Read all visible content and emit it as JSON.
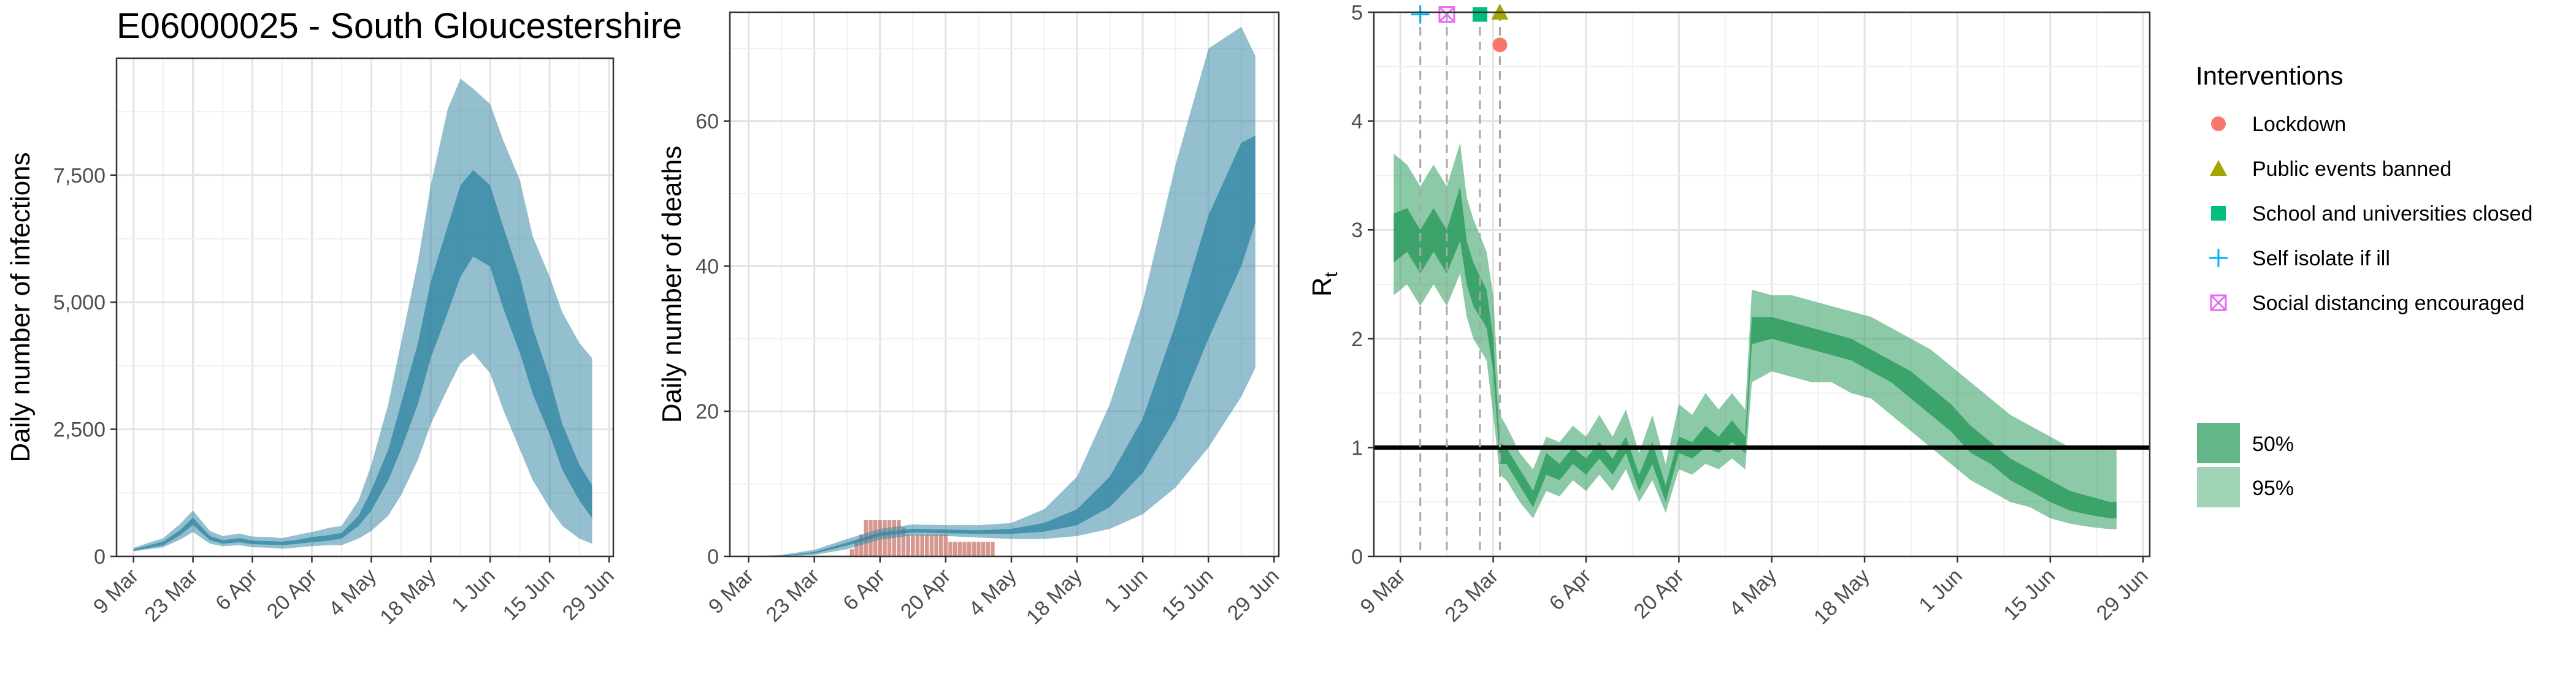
{
  "title": "E06000025 - South Gloucestershire",
  "colors": {
    "infections_band": "#3a8aa6",
    "rt_band": "#2e9d5f",
    "deaths_bar": "#c8756b",
    "lockdown": "#f8766d",
    "public_events_banned": "#a3a500",
    "school_closed": "#00bf7d",
    "self_isolate": "#00b0f6",
    "social_distancing": "#e76bf3"
  },
  "chart_data": [
    {
      "id": "infections",
      "type": "area",
      "title": "E06000025 - South Gloucestershire",
      "xlabel": "",
      "ylabel": "Daily number of infections",
      "x_ticks": [
        "9 Mar",
        "23 Mar",
        "6 Apr",
        "20 Apr",
        "4 May",
        "18 May",
        "1 Jun",
        "15 Jun",
        "29 Jun"
      ],
      "xlim": [
        "2020-03-05",
        "2020-06-30"
      ],
      "ylim": [
        0,
        9800
      ],
      "y_ticks": [
        0,
        2500,
        5000,
        7500
      ],
      "y_tick_labels": [
        "0",
        "2,500",
        "5,000",
        "7,500"
      ],
      "grid": true,
      "series": [
        {
          "x": [
            "2020-03-09",
            "2020-03-16",
            "2020-03-20",
            "2020-03-23",
            "2020-03-27",
            "2020-03-30",
            "2020-04-03",
            "2020-04-06",
            "2020-04-10",
            "2020-04-13",
            "2020-04-17",
            "2020-04-20",
            "2020-04-24",
            "2020-04-27",
            "2020-05-01",
            "2020-05-04",
            "2020-05-08",
            "2020-05-11",
            "2020-05-15",
            "2020-05-18",
            "2020-05-22",
            "2020-05-25",
            "2020-05-28",
            "2020-06-01",
            "2020-06-04",
            "2020-06-08",
            "2020-06-11",
            "2020-06-15",
            "2020-06-18",
            "2020-06-22",
            "2020-06-25"
          ],
          "lower95": [
            100,
            180,
            330,
            480,
            250,
            200,
            220,
            180,
            170,
            150,
            180,
            200,
            220,
            220,
            350,
            500,
            800,
            1200,
            1900,
            2600,
            3300,
            3800,
            4000,
            3600,
            2900,
            2100,
            1500,
            950,
            600,
            350,
            250
          ],
          "lower50": [
            110,
            220,
            420,
            620,
            320,
            250,
            280,
            240,
            230,
            220,
            250,
            280,
            310,
            350,
            600,
            900,
            1500,
            2100,
            3000,
            3900,
            4800,
            5500,
            5900,
            5700,
            4900,
            4000,
            3200,
            2400,
            1700,
            1100,
            750
          ],
          "upper50": [
            140,
            290,
            520,
            760,
            400,
            320,
            360,
            310,
            300,
            290,
            330,
            380,
            420,
            460,
            800,
            1300,
            2100,
            3000,
            4200,
            5400,
            6500,
            7300,
            7600,
            7300,
            6500,
            5500,
            4500,
            3500,
            2600,
            1800,
            1400
          ],
          "upper95": [
            170,
            360,
            640,
            900,
            500,
            400,
            450,
            390,
            380,
            360,
            430,
            480,
            560,
            600,
            1100,
            1800,
            3000,
            4200,
            5800,
            7300,
            8800,
            9400,
            9200,
            8900,
            8200,
            7400,
            6300,
            5500,
            4800,
            4200,
            3900
          ]
        }
      ]
    },
    {
      "id": "deaths",
      "type": "area",
      "xlabel": "",
      "ylabel": "Daily number of deaths",
      "x_ticks": [
        "9 Mar",
        "23 Mar",
        "6 Apr",
        "20 Apr",
        "4 May",
        "18 May",
        "1 Jun",
        "15 Jun",
        "29 Jun"
      ],
      "xlim": [
        "2020-03-05",
        "2020-06-30"
      ],
      "ylim": [
        0,
        75
      ],
      "y_ticks": [
        0,
        20,
        40,
        60
      ],
      "y_tick_labels": [
        "0",
        "20",
        "40",
        "60"
      ],
      "grid": true,
      "series": [
        {
          "x": [
            "2020-03-09",
            "2020-03-16",
            "2020-03-23",
            "2020-03-30",
            "2020-04-06",
            "2020-04-13",
            "2020-04-20",
            "2020-04-27",
            "2020-05-04",
            "2020-05-11",
            "2020-05-18",
            "2020-05-25",
            "2020-06-01",
            "2020-06-08",
            "2020-06-15",
            "2020-06-22",
            "2020-06-25"
          ],
          "lower95": [
            0,
            0,
            0.2,
            1.0,
            2.3,
            2.9,
            2.8,
            2.6,
            2.4,
            2.4,
            2.8,
            3.8,
            5.8,
            9.5,
            15,
            22,
            26
          ],
          "lower50": [
            0,
            0.05,
            0.4,
            1.5,
            2.8,
            3.3,
            3.2,
            3.1,
            3.1,
            3.4,
            4.3,
            6.8,
            11.5,
            19,
            30,
            40,
            46
          ],
          "upper50": [
            0,
            0.1,
            0.6,
            1.9,
            3.3,
            3.8,
            3.7,
            3.6,
            3.8,
            4.6,
            6.5,
            11,
            19,
            32,
            47,
            57,
            58
          ],
          "upper95": [
            0,
            0.2,
            0.9,
            2.4,
            3.8,
            4.4,
            4.3,
            4.3,
            4.6,
            6.5,
            11,
            21,
            35,
            54,
            70,
            73,
            69
          ]
        }
      ],
      "reported_deaths": {
        "x": [
          "2020-03-31",
          "2020-04-01",
          "2020-04-02",
          "2020-04-03",
          "2020-04-04",
          "2020-04-05",
          "2020-04-06",
          "2020-04-07",
          "2020-04-08",
          "2020-04-09",
          "2020-04-10",
          "2020-04-11",
          "2020-04-12",
          "2020-04-13",
          "2020-04-14",
          "2020-04-15",
          "2020-04-16",
          "2020-04-17",
          "2020-04-18",
          "2020-04-19",
          "2020-04-20",
          "2020-04-21",
          "2020-04-22",
          "2020-04-23",
          "2020-04-24",
          "2020-04-25",
          "2020-04-26",
          "2020-04-27",
          "2020-04-28",
          "2020-04-29",
          "2020-04-30"
        ],
        "values": [
          1,
          2,
          3,
          5,
          5,
          5,
          5,
          5,
          5,
          5,
          5,
          4,
          3,
          3,
          3,
          3,
          3,
          3,
          3,
          3,
          3,
          2,
          2,
          2,
          2,
          2,
          2,
          2,
          2,
          2,
          2
        ]
      }
    },
    {
      "id": "rt",
      "type": "area",
      "xlabel": "",
      "ylabel": "R",
      "ylabel_subscript": "t",
      "x_ticks": [
        "9 Mar",
        "23 Mar",
        "6 Apr",
        "20 Apr",
        "4 May",
        "18 May",
        "1 Jun",
        "15 Jun",
        "29 Jun"
      ],
      "xlim": [
        "2020-03-05",
        "2020-06-30"
      ],
      "ylim": [
        0,
        5
      ],
      "y_ticks": [
        0,
        1,
        2,
        3,
        4,
        5
      ],
      "y_tick_labels": [
        "0",
        "1",
        "2",
        "3",
        "4",
        "5"
      ],
      "grid": true,
      "reference_line": 1,
      "series": [
        {
          "x": [
            "2020-03-08",
            "2020-03-10",
            "2020-03-12",
            "2020-03-14",
            "2020-03-16",
            "2020-03-18",
            "2020-03-19",
            "2020-03-20",
            "2020-03-22",
            "2020-03-23",
            "2020-03-24",
            "2020-03-25",
            "2020-03-27",
            "2020-03-29",
            "2020-03-31",
            "2020-04-02",
            "2020-04-04",
            "2020-04-06",
            "2020-04-08",
            "2020-04-10",
            "2020-04-12",
            "2020-04-14",
            "2020-04-16",
            "2020-04-18",
            "2020-04-20",
            "2020-04-22",
            "2020-04-24",
            "2020-04-26",
            "2020-04-28",
            "2020-04-30",
            "2020-05-01",
            "2020-05-04",
            "2020-05-07",
            "2020-05-10",
            "2020-05-13",
            "2020-05-16",
            "2020-05-19",
            "2020-05-22",
            "2020-05-25",
            "2020-05-28",
            "2020-05-31",
            "2020-06-03",
            "2020-06-06",
            "2020-06-09",
            "2020-06-12",
            "2020-06-15",
            "2020-06-18",
            "2020-06-21",
            "2020-06-24",
            "2020-06-25"
          ],
          "lower95": [
            2.4,
            2.5,
            2.3,
            2.5,
            2.3,
            2.6,
            2.2,
            2.0,
            1.8,
            1.3,
            0.75,
            0.7,
            0.5,
            0.35,
            0.6,
            0.55,
            0.7,
            0.6,
            0.75,
            0.6,
            0.8,
            0.5,
            0.7,
            0.4,
            0.8,
            0.75,
            0.85,
            0.8,
            0.9,
            0.8,
            1.6,
            1.7,
            1.65,
            1.6,
            1.6,
            1.5,
            1.45,
            1.3,
            1.15,
            1.0,
            0.85,
            0.7,
            0.6,
            0.5,
            0.45,
            0.35,
            0.3,
            0.27,
            0.25,
            0.25
          ],
          "lower50": [
            2.7,
            2.8,
            2.6,
            2.8,
            2.6,
            2.9,
            2.5,
            2.3,
            2.1,
            1.7,
            0.85,
            0.85,
            0.65,
            0.45,
            0.75,
            0.7,
            0.85,
            0.75,
            0.9,
            0.75,
            0.95,
            0.6,
            0.85,
            0.5,
            0.95,
            0.9,
            1.0,
            0.95,
            1.05,
            0.95,
            1.95,
            2.0,
            1.95,
            1.9,
            1.85,
            1.8,
            1.7,
            1.6,
            1.45,
            1.3,
            1.15,
            0.95,
            0.85,
            0.7,
            0.6,
            0.5,
            0.42,
            0.38,
            0.35,
            0.35
          ],
          "upper50": [
            3.15,
            3.2,
            3.0,
            3.2,
            3.0,
            3.4,
            2.9,
            2.7,
            2.45,
            2.0,
            1.05,
            1.0,
            0.8,
            0.6,
            0.95,
            0.85,
            1.0,
            0.9,
            1.05,
            0.9,
            1.1,
            0.75,
            1.05,
            0.65,
            1.1,
            1.05,
            1.2,
            1.1,
            1.25,
            1.1,
            2.2,
            2.2,
            2.15,
            2.1,
            2.05,
            2.0,
            1.9,
            1.8,
            1.7,
            1.55,
            1.4,
            1.2,
            1.05,
            0.9,
            0.8,
            0.7,
            0.6,
            0.55,
            0.5,
            0.5
          ],
          "upper95": [
            3.7,
            3.6,
            3.4,
            3.6,
            3.4,
            3.8,
            3.3,
            3.1,
            2.8,
            2.4,
            1.3,
            1.2,
            0.95,
            0.8,
            1.1,
            1.05,
            1.2,
            1.1,
            1.3,
            1.1,
            1.35,
            0.95,
            1.3,
            0.85,
            1.4,
            1.3,
            1.5,
            1.35,
            1.5,
            1.35,
            2.45,
            2.4,
            2.4,
            2.35,
            2.3,
            2.25,
            2.2,
            2.1,
            2.0,
            1.9,
            1.75,
            1.6,
            1.45,
            1.3,
            1.2,
            1.1,
            1.0,
            1.0,
            1.0,
            1.0
          ]
        }
      ],
      "interventions": [
        {
          "name": "Lockdown",
          "date": "2020-03-24",
          "y": 4.7,
          "shape": "circle",
          "color": "#f8766d"
        },
        {
          "name": "Public events banned",
          "date": "2020-03-24",
          "y": 5.0,
          "shape": "triangle",
          "color": "#a3a500"
        },
        {
          "name": "School and universities closed",
          "date": "2020-03-21",
          "y": 4.98,
          "shape": "square",
          "color": "#00bf7d"
        },
        {
          "name": "Self isolate if ill",
          "date": "2020-03-12",
          "y": 4.98,
          "shape": "plus",
          "color": "#00b0f6"
        },
        {
          "name": "Social distancing encouraged",
          "date": "2020-03-16",
          "y": 4.98,
          "shape": "boxcross",
          "color": "#e76bf3"
        }
      ]
    }
  ],
  "legend": {
    "interventions_title": "Interventions",
    "interventions": [
      {
        "label": "Lockdown",
        "shape": "circle",
        "color": "#f8766d"
      },
      {
        "label": "Public events banned",
        "shape": "triangle",
        "color": "#a3a500"
      },
      {
        "label": "School and universities closed",
        "shape": "square",
        "color": "#00bf7d"
      },
      {
        "label": "Self isolate if ill",
        "shape": "plus",
        "color": "#00b0f6"
      },
      {
        "label": "Social distancing encouraged",
        "shape": "boxcross",
        "color": "#e76bf3"
      }
    ],
    "bands": [
      {
        "label": "50%",
        "color": "#2e9d5f",
        "opacity": 0.75
      },
      {
        "label": "95%",
        "color": "#2e9d5f",
        "opacity": 0.45
      }
    ]
  }
}
